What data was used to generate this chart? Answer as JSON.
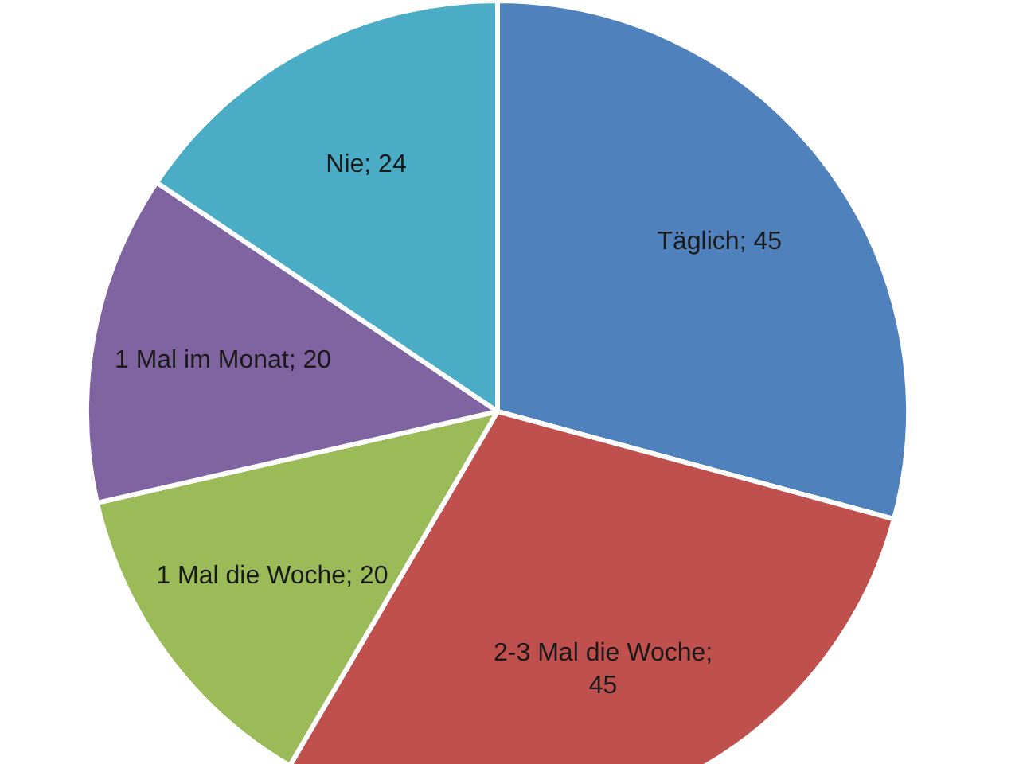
{
  "chart_data": {
    "type": "pie",
    "categories": [
      "Täglich",
      "2-3 Mal die Woche",
      "1 Mal die Woche",
      "1 Mal im Monat",
      "Nie"
    ],
    "values": [
      45,
      45,
      20,
      20,
      24
    ],
    "colors": [
      "#4f81bd",
      "#c0504d",
      "#9bbb59",
      "#8064a2",
      "#4bacc6"
    ],
    "value_labels": [
      "; 45",
      ";\n45",
      "; 20",
      "; 20",
      "; 24"
    ]
  }
}
